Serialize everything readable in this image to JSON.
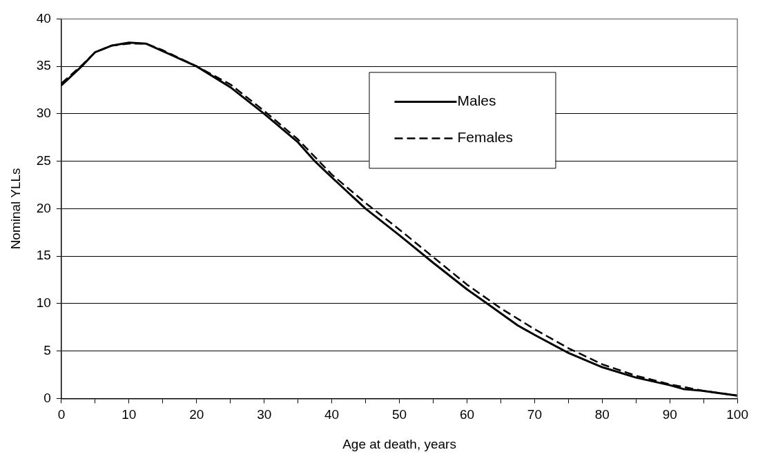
{
  "chart_data": {
    "type": "line",
    "xlabel": "Age at death, years",
    "ylabel": "Nominal YLLs",
    "xlim": [
      0,
      100
    ],
    "ylim": [
      0,
      40
    ],
    "xticks": [
      0,
      {
        "value": 5,
        "label": null
      },
      10,
      {
        "value": 15,
        "label": null
      },
      20,
      {
        "value": 25,
        "label": null
      },
      30,
      {
        "value": 35,
        "label": null
      },
      40,
      {
        "value": 45,
        "label": null
      },
      50,
      {
        "value": 55,
        "label": null
      },
      60,
      {
        "value": 65,
        "label": null
      },
      70,
      {
        "value": 75,
        "label": null
      },
      80,
      {
        "value": 85,
        "label": null
      },
      90,
      {
        "value": 95,
        "label": null
      },
      100
    ],
    "yticks": [
      0,
      5,
      10,
      15,
      20,
      25,
      30,
      35,
      40
    ],
    "grid": "y",
    "legend": "top right",
    "marker": "none",
    "series": [
      {
        "name": "Males",
        "color": "#000000",
        "line_style": "solid",
        "x": [
          0,
          3,
          5,
          7.5,
          10,
          12.5,
          15,
          20,
          25,
          30,
          35,
          37.5,
          40,
          45,
          50,
          55,
          60,
          63,
          67.5,
          70,
          75,
          80,
          85,
          90,
          92,
          95,
          100
        ],
        "values": [
          33.0,
          35.0,
          36.5,
          37.2,
          37.5,
          37.4,
          36.6,
          35.0,
          32.8,
          30.0,
          27.0,
          25.0,
          23.3,
          20.0,
          17.2,
          14.3,
          11.5,
          10.0,
          7.7,
          6.7,
          4.8,
          3.3,
          2.2,
          1.4,
          1.0,
          0.8,
          0.3
        ]
      },
      {
        "name": "Females",
        "color": "#000000",
        "line_style": "dashed",
        "x": [
          0,
          3,
          5,
          7.5,
          10,
          12.5,
          15,
          20,
          25,
          30,
          35,
          40,
          45,
          50,
          55,
          60,
          63,
          65,
          70,
          75,
          80,
          85,
          90,
          95,
          100
        ],
        "values": [
          33.2,
          35.1,
          36.5,
          37.2,
          37.4,
          37.4,
          36.7,
          35.0,
          33.1,
          30.3,
          27.3,
          23.6,
          20.6,
          17.8,
          14.9,
          12.0,
          10.5,
          9.5,
          7.3,
          5.3,
          3.6,
          2.4,
          1.5,
          0.8,
          0.3
        ]
      }
    ]
  }
}
